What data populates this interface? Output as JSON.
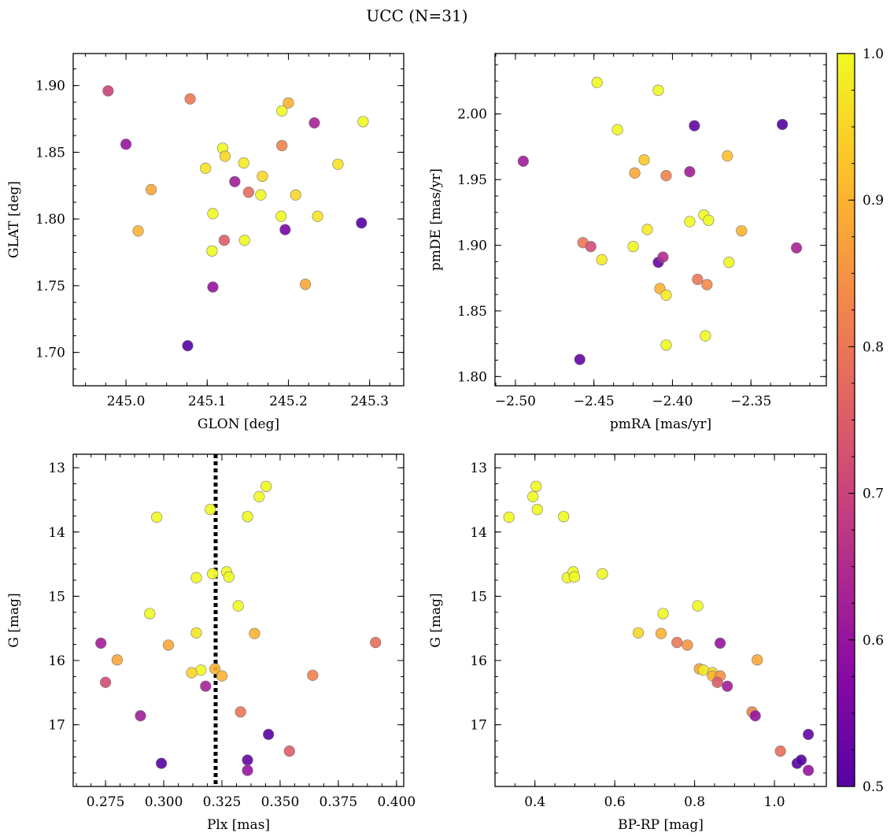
{
  "figure": {
    "title": "UCC (N=31)"
  },
  "colorbar": {
    "colormap": "plasma",
    "range": [
      0.5,
      1.0
    ],
    "ticks": [
      0.5,
      0.6,
      0.7,
      0.8,
      0.9,
      1.0
    ],
    "tick_labels": [
      "0.5",
      "0.6",
      "0.7",
      "0.8",
      "0.9",
      "1.0"
    ]
  },
  "chart_data": [
    {
      "type": "scatter",
      "id": "glon-glat",
      "xlabel": "GLON [deg]",
      "ylabel": "GLAT [deg]",
      "xlim": [
        244.935,
        245.342
      ],
      "ylim": [
        1.675,
        1.924
      ],
      "xticks": [
        245.0,
        245.1,
        245.2,
        245.3
      ],
      "xtick_labels": [
        "245.0",
        "245.1",
        "245.2",
        "245.3"
      ],
      "yticks": [
        1.7,
        1.75,
        1.8,
        1.85,
        1.9
      ],
      "ytick_labels": [
        "1.70",
        "1.75",
        "1.80",
        "1.85",
        "1.90"
      ],
      "points": [
        {
          "x": 244.978,
          "y": 1.896,
          "c": 0.7
        },
        {
          "x": 245.0,
          "y": 1.856,
          "c": 0.6
        },
        {
          "x": 245.031,
          "y": 1.822,
          "c": 0.88
        },
        {
          "x": 245.015,
          "y": 1.791,
          "c": 0.9
        },
        {
          "x": 245.079,
          "y": 1.89,
          "c": 0.8
        },
        {
          "x": 245.076,
          "y": 1.705,
          "c": 0.5
        },
        {
          "x": 245.098,
          "y": 1.838,
          "c": 0.97
        },
        {
          "x": 245.107,
          "y": 1.804,
          "c": 1.0
        },
        {
          "x": 245.106,
          "y": 1.776,
          "c": 1.0
        },
        {
          "x": 245.107,
          "y": 1.749,
          "c": 0.6
        },
        {
          "x": 245.119,
          "y": 1.853,
          "c": 1.0
        },
        {
          "x": 245.122,
          "y": 1.847,
          "c": 0.95
        },
        {
          "x": 245.121,
          "y": 1.784,
          "c": 0.75
        },
        {
          "x": 245.134,
          "y": 1.828,
          "c": 0.62
        },
        {
          "x": 245.145,
          "y": 1.842,
          "c": 0.98
        },
        {
          "x": 245.146,
          "y": 1.784,
          "c": 1.0
        },
        {
          "x": 245.151,
          "y": 1.82,
          "c": 0.78
        },
        {
          "x": 245.166,
          "y": 1.818,
          "c": 1.0
        },
        {
          "x": 245.168,
          "y": 1.832,
          "c": 0.95
        },
        {
          "x": 245.192,
          "y": 1.881,
          "c": 1.0
        },
        {
          "x": 245.192,
          "y": 1.855,
          "c": 0.82
        },
        {
          "x": 245.191,
          "y": 1.802,
          "c": 1.0
        },
        {
          "x": 245.196,
          "y": 1.792,
          "c": 0.55
        },
        {
          "x": 245.2,
          "y": 1.887,
          "c": 0.9
        },
        {
          "x": 245.209,
          "y": 1.818,
          "c": 0.95
        },
        {
          "x": 245.221,
          "y": 1.751,
          "c": 0.88
        },
        {
          "x": 245.232,
          "y": 1.872,
          "c": 0.63
        },
        {
          "x": 245.236,
          "y": 1.802,
          "c": 0.97
        },
        {
          "x": 245.261,
          "y": 1.841,
          "c": 0.97
        },
        {
          "x": 245.292,
          "y": 1.873,
          "c": 1.0
        },
        {
          "x": 245.29,
          "y": 1.797,
          "c": 0.5
        }
      ]
    },
    {
      "type": "scatter",
      "id": "pmra-pmde",
      "xlabel": "pmRA [mas/yr]",
      "ylabel": "pmDE [mas/yr]",
      "xlim": [
        -2.513,
        -2.302
      ],
      "ylim": [
        1.793,
        2.046
      ],
      "xticks": [
        -2.5,
        -2.45,
        -2.4,
        -2.35
      ],
      "xtick_labels": [
        "−2.50",
        "−2.45",
        "−2.40",
        "−2.35"
      ],
      "yticks": [
        1.8,
        1.85,
        1.9,
        1.95,
        2.0
      ],
      "ytick_labels": [
        "1.80",
        "1.85",
        "1.90",
        "1.95",
        "2.00"
      ],
      "points": [
        {
          "x": -2.495,
          "y": 1.964,
          "c": 0.62
        },
        {
          "x": -2.448,
          "y": 2.024,
          "c": 1.0
        },
        {
          "x": -2.435,
          "y": 1.988,
          "c": 1.0
        },
        {
          "x": -2.409,
          "y": 2.018,
          "c": 1.0
        },
        {
          "x": -2.386,
          "y": 1.991,
          "c": 0.52
        },
        {
          "x": -2.33,
          "y": 1.992,
          "c": 0.5
        },
        {
          "x": -2.418,
          "y": 1.965,
          "c": 0.93
        },
        {
          "x": -2.424,
          "y": 1.955,
          "c": 0.88
        },
        {
          "x": -2.404,
          "y": 1.953,
          "c": 0.82
        },
        {
          "x": -2.389,
          "y": 1.956,
          "c": 0.62
        },
        {
          "x": -2.365,
          "y": 1.968,
          "c": 0.92
        },
        {
          "x": -2.416,
          "y": 1.912,
          "c": 0.98
        },
        {
          "x": -2.389,
          "y": 1.918,
          "c": 1.0
        },
        {
          "x": -2.38,
          "y": 1.923,
          "c": 1.0
        },
        {
          "x": -2.377,
          "y": 1.919,
          "c": 1.0
        },
        {
          "x": -2.356,
          "y": 1.911,
          "c": 0.9
        },
        {
          "x": -2.457,
          "y": 1.902,
          "c": 0.8
        },
        {
          "x": -2.452,
          "y": 1.899,
          "c": 0.72
        },
        {
          "x": -2.445,
          "y": 1.889,
          "c": 0.98
        },
        {
          "x": -2.425,
          "y": 1.899,
          "c": 1.0
        },
        {
          "x": -2.409,
          "y": 1.887,
          "c": 0.52
        },
        {
          "x": -2.406,
          "y": 1.891,
          "c": 0.65
        },
        {
          "x": -2.364,
          "y": 1.887,
          "c": 1.0
        },
        {
          "x": -2.321,
          "y": 1.898,
          "c": 0.63
        },
        {
          "x": -2.384,
          "y": 1.874,
          "c": 0.8
        },
        {
          "x": -2.378,
          "y": 1.87,
          "c": 0.83
        },
        {
          "x": -2.408,
          "y": 1.867,
          "c": 0.9
        },
        {
          "x": -2.404,
          "y": 1.862,
          "c": 0.98
        },
        {
          "x": -2.404,
          "y": 1.824,
          "c": 1.0
        },
        {
          "x": -2.379,
          "y": 1.831,
          "c": 1.0
        },
        {
          "x": -2.459,
          "y": 1.813,
          "c": 0.52
        }
      ]
    },
    {
      "type": "scatter",
      "id": "plx-g",
      "xlabel": "Plx [mas]",
      "ylabel": "G [mag]",
      "xlim": [
        0.2611,
        0.4031
      ],
      "ylim": [
        17.96,
        12.79
      ],
      "y_inverted": true,
      "vline": {
        "x": 0.3223,
        "style": "dotted",
        "color": "#000000"
      },
      "xticks": [
        0.275,
        0.3,
        0.325,
        0.35,
        0.375,
        0.4
      ],
      "xtick_labels": [
        "0.275",
        "0.300",
        "0.325",
        "0.350",
        "0.375",
        "0.400"
      ],
      "yticks": [
        13,
        14,
        15,
        16,
        17
      ],
      "ytick_labels": [
        "13",
        "14",
        "15",
        "16",
        "17"
      ],
      "points": [
        {
          "x": 0.344,
          "y": 13.29,
          "c": 1.0
        },
        {
          "x": 0.341,
          "y": 13.45,
          "c": 1.0
        },
        {
          "x": 0.32,
          "y": 13.65,
          "c": 1.0
        },
        {
          "x": 0.336,
          "y": 13.76,
          "c": 1.0
        },
        {
          "x": 0.297,
          "y": 13.77,
          "c": 1.0
        },
        {
          "x": 0.321,
          "y": 14.65,
          "c": 1.0
        },
        {
          "x": 0.327,
          "y": 14.62,
          "c": 1.0
        },
        {
          "x": 0.328,
          "y": 14.7,
          "c": 1.0
        },
        {
          "x": 0.314,
          "y": 14.71,
          "c": 1.0
        },
        {
          "x": 0.332,
          "y": 15.15,
          "c": 1.0
        },
        {
          "x": 0.294,
          "y": 15.27,
          "c": 1.0
        },
        {
          "x": 0.314,
          "y": 15.57,
          "c": 0.97
        },
        {
          "x": 0.339,
          "y": 15.58,
          "c": 0.9
        },
        {
          "x": 0.302,
          "y": 15.76,
          "c": 0.88
        },
        {
          "x": 0.273,
          "y": 15.73,
          "c": 0.62
        },
        {
          "x": 0.391,
          "y": 15.72,
          "c": 0.78
        },
        {
          "x": 0.28,
          "y": 15.99,
          "c": 0.88
        },
        {
          "x": 0.322,
          "y": 16.13,
          "c": 0.9
        },
        {
          "x": 0.316,
          "y": 16.15,
          "c": 1.0
        },
        {
          "x": 0.312,
          "y": 16.19,
          "c": 0.95
        },
        {
          "x": 0.325,
          "y": 16.24,
          "c": 0.9
        },
        {
          "x": 0.364,
          "y": 16.23,
          "c": 0.82
        },
        {
          "x": 0.275,
          "y": 16.34,
          "c": 0.72
        },
        {
          "x": 0.318,
          "y": 16.4,
          "c": 0.63
        },
        {
          "x": 0.29,
          "y": 16.86,
          "c": 0.62
        },
        {
          "x": 0.333,
          "y": 16.8,
          "c": 0.8
        },
        {
          "x": 0.345,
          "y": 17.15,
          "c": 0.5
        },
        {
          "x": 0.299,
          "y": 17.6,
          "c": 0.5
        },
        {
          "x": 0.336,
          "y": 17.55,
          "c": 0.52
        },
        {
          "x": 0.336,
          "y": 17.71,
          "c": 0.6
        },
        {
          "x": 0.354,
          "y": 17.41,
          "c": 0.75
        }
      ]
    },
    {
      "type": "scatter",
      "id": "bprp-g",
      "xlabel": "BP-RP [mag]",
      "ylabel": "G [mag]",
      "xlim": [
        0.3,
        1.13
      ],
      "ylim": [
        17.96,
        12.79
      ],
      "y_inverted": true,
      "xticks": [
        0.4,
        0.6,
        0.8,
        1.0
      ],
      "xtick_labels": [
        "0.4",
        "0.6",
        "0.8",
        "1.0"
      ],
      "yticks": [
        13,
        14,
        15,
        16,
        17
      ],
      "ytick_labels": [
        "13",
        "14",
        "15",
        "16",
        "17"
      ],
      "points": [
        {
          "x": 0.335,
          "y": 13.77,
          "c": 1.0
        },
        {
          "x": 0.403,
          "y": 13.29,
          "c": 1.0
        },
        {
          "x": 0.395,
          "y": 13.45,
          "c": 1.0
        },
        {
          "x": 0.406,
          "y": 13.65,
          "c": 1.0
        },
        {
          "x": 0.472,
          "y": 13.76,
          "c": 1.0
        },
        {
          "x": 0.481,
          "y": 14.71,
          "c": 1.0
        },
        {
          "x": 0.496,
          "y": 14.62,
          "c": 1.0
        },
        {
          "x": 0.499,
          "y": 14.7,
          "c": 1.0
        },
        {
          "x": 0.569,
          "y": 14.65,
          "c": 1.0
        },
        {
          "x": 0.721,
          "y": 15.27,
          "c": 1.0
        },
        {
          "x": 0.808,
          "y": 15.15,
          "c": 1.0
        },
        {
          "x": 0.659,
          "y": 15.57,
          "c": 0.95
        },
        {
          "x": 0.716,
          "y": 15.58,
          "c": 0.9
        },
        {
          "x": 0.756,
          "y": 15.72,
          "c": 0.8
        },
        {
          "x": 0.782,
          "y": 15.76,
          "c": 0.85
        },
        {
          "x": 0.864,
          "y": 15.73,
          "c": 0.6
        },
        {
          "x": 0.957,
          "y": 15.99,
          "c": 0.88
        },
        {
          "x": 0.812,
          "y": 16.13,
          "c": 0.88
        },
        {
          "x": 0.822,
          "y": 16.15,
          "c": 0.98
        },
        {
          "x": 0.845,
          "y": 16.19,
          "c": 0.96
        },
        {
          "x": 0.845,
          "y": 16.24,
          "c": 0.9
        },
        {
          "x": 0.864,
          "y": 16.24,
          "c": 0.85
        },
        {
          "x": 0.857,
          "y": 16.34,
          "c": 0.75
        },
        {
          "x": 0.882,
          "y": 16.4,
          "c": 0.62
        },
        {
          "x": 0.944,
          "y": 16.8,
          "c": 0.82
        },
        {
          "x": 0.952,
          "y": 16.86,
          "c": 0.6
        },
        {
          "x": 1.015,
          "y": 17.41,
          "c": 0.78
        },
        {
          "x": 1.085,
          "y": 17.15,
          "c": 0.52
        },
        {
          "x": 1.057,
          "y": 17.6,
          "c": 0.5
        },
        {
          "x": 1.067,
          "y": 17.55,
          "c": 0.5
        },
        {
          "x": 1.085,
          "y": 17.71,
          "c": 0.6
        }
      ]
    }
  ]
}
